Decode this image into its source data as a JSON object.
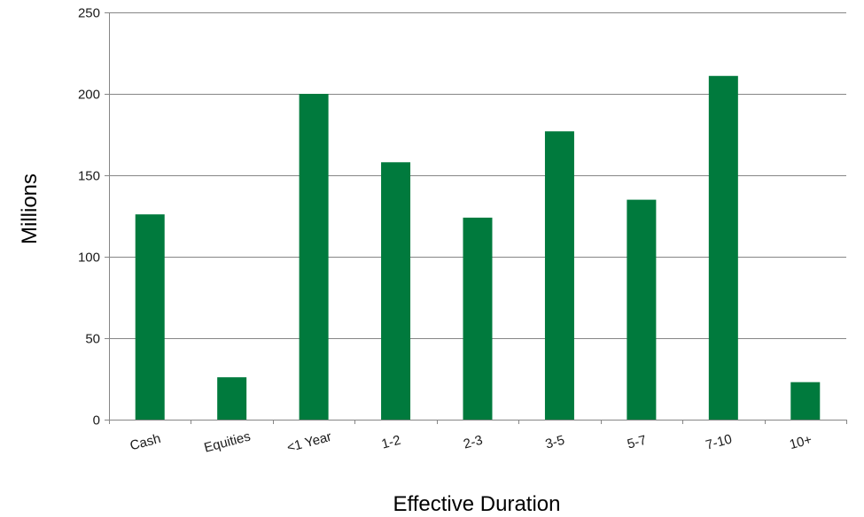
{
  "chart_data": {
    "type": "bar",
    "categories": [
      "Cash",
      "Equities",
      "<1 Year",
      "1-2",
      "2-3",
      "3-5",
      "5-7",
      "7-10",
      "10+"
    ],
    "values": [
      126,
      26,
      200,
      158,
      124,
      177,
      135,
      211,
      23
    ],
    "yticks": [
      0,
      50,
      100,
      150,
      200,
      250
    ],
    "ylim": [
      0,
      250
    ],
    "xlabel": "Effective Duration",
    "ylabel": "Millions",
    "grid": true,
    "bar_color": "#007A3D",
    "grid_color": "#868686",
    "axis_color": "#868686"
  }
}
